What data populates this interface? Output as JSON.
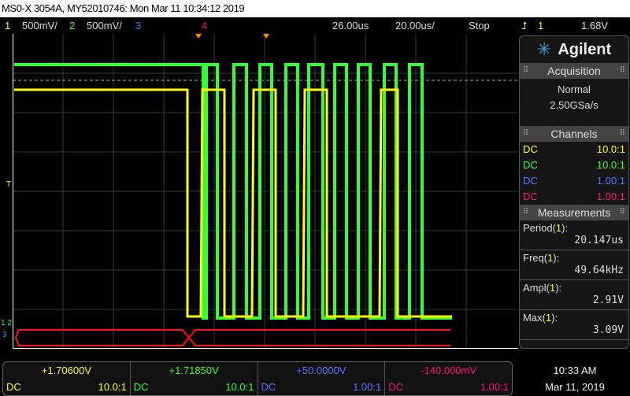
{
  "title": "MS0-X 3054A, MY52010746: Mon Mar 11 10:34:12 2019",
  "topbar": {
    "ch1": "1",
    "ch1_scale": "500mV/",
    "ch2": "2",
    "ch2_scale": "500mV/",
    "ch3": "3",
    "ch4": "4",
    "delay": "26.00us",
    "timebase": "20.00us/",
    "run_state": "Stop",
    "trigger_icon": "rising-edge-icon",
    "trigger_ch": "1",
    "trigger_level": "1.68V"
  },
  "colors": {
    "ch1": "#ffff00",
    "ch2": "#33ff33",
    "ch3": "#5577ff",
    "ch4": "#ff1177",
    "bus": "#ff1111"
  },
  "side": {
    "logo": "Agilent",
    "acquisition": {
      "header": "Acquisition",
      "mode": "Normal",
      "rate": "2.50GSa/s"
    },
    "channels": {
      "header": "Channels",
      "rows": [
        {
          "coupling": "DC",
          "probe": "10.0:1"
        },
        {
          "coupling": "DC",
          "probe": "10.0:1"
        },
        {
          "coupling": "DC",
          "probe": "1.00:1"
        },
        {
          "coupling": "DC",
          "probe": "1.00:1"
        }
      ]
    },
    "measurements": {
      "header": "Measurements",
      "items": [
        {
          "name": "Period(",
          "ch": "1",
          "end": "):",
          "value": "20.147us"
        },
        {
          "name": "Freq(",
          "ch": "1",
          "end": "):",
          "value": "49.64kHz"
        },
        {
          "name": "Ampl(",
          "ch": "1",
          "end": "):",
          "value": "2.91V"
        },
        {
          "name": "Max(",
          "ch": "1",
          "end": "):",
          "value": "3.09V"
        }
      ]
    }
  },
  "bottom": [
    {
      "offset": "+1.70600V",
      "coupling": "DC",
      "probe": "10.0:1"
    },
    {
      "offset": "+1.71850V",
      "coupling": "DC",
      "probe": "10.0:1"
    },
    {
      "offset": "+50.0000V",
      "coupling": "DC",
      "probe": "1.00:1"
    },
    {
      "offset": "-140.000mV",
      "coupling": "DC",
      "probe": "1.00:1"
    }
  ],
  "clock": {
    "time": "10:33 AM",
    "date": "Mar 11, 2019"
  },
  "markers": {
    "trigger": "T",
    "ground": "1 2",
    "ch3_marker": "3"
  }
}
